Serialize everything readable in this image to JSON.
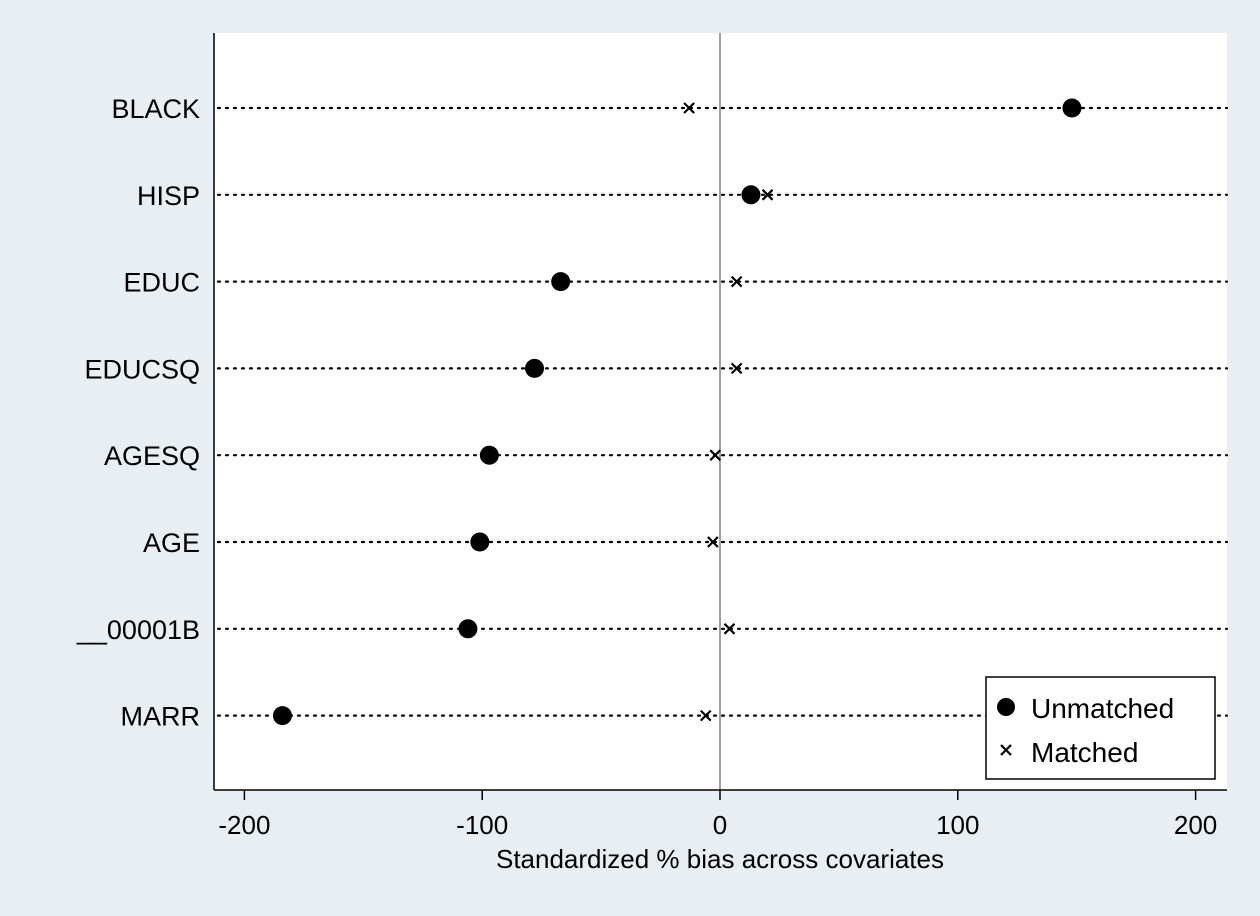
{
  "chart_data": {
    "type": "scatter",
    "xlabel": "Standardized % bias across covariates",
    "xlim": [
      -213,
      213
    ],
    "xticks": [
      -200,
      -100,
      0,
      100,
      200
    ],
    "xtick_labels": [
      "-200",
      "-100",
      "0",
      "100",
      "200"
    ],
    "categories": [
      "BLACK",
      "HISP",
      "EDUC",
      "EDUCSQ",
      "AGESQ",
      "AGE",
      "__00001B",
      "MARR"
    ],
    "series": [
      {
        "name": "Unmatched",
        "marker": "circle",
        "values": [
          148,
          13,
          -67,
          -78,
          -97,
          -101,
          -106,
          -184
        ]
      },
      {
        "name": "Matched",
        "marker": "x",
        "values": [
          -13,
          20,
          7,
          7,
          -2,
          -3,
          4,
          -6
        ]
      }
    ],
    "reference_line": 0,
    "grid": "dotted horizontal lines per category",
    "legend_position": "bottom-right",
    "colors": {
      "background": "#e8eef1",
      "plot_area": "#ffffff",
      "markers": "#000000",
      "reference_line": "#a0a0a0"
    }
  }
}
